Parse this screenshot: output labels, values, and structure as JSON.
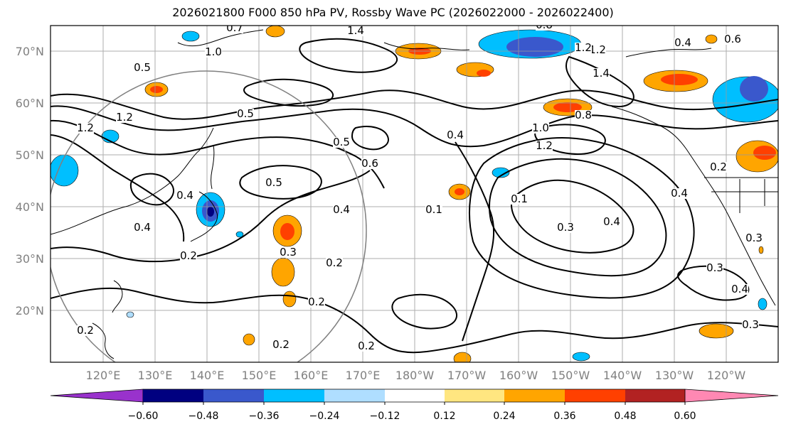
{
  "title": "2026021800 F000 850 hPa PV, Rossby Wave PC (2026022000 - 2026022400)",
  "map": {
    "lat_labels": [
      "70°N",
      "60°N",
      "50°N",
      "40°N",
      "30°N",
      "20°N"
    ],
    "lon_labels": [
      "120°E",
      "130°E",
      "140°E",
      "150°E",
      "160°E",
      "170°E",
      "180°W",
      "170°W",
      "160°W",
      "150°W",
      "140°W",
      "130°W",
      "120°W"
    ],
    "contour_labels": [
      "1.4",
      "0.7",
      "1.0",
      "0.8",
      "1.2",
      "0.5",
      "1.2",
      "1.2",
      "0.5",
      "0.5",
      "0.4",
      "0.6",
      "0.4",
      "0.5",
      "0.4",
      "0.2",
      "0.2",
      "0.2",
      "0.3",
      "0.2",
      "0.2",
      "0.2",
      "0.3",
      "0.3",
      "0.4",
      "0.3",
      "1.0",
      "1.2",
      "0.8",
      "0.1",
      "0.4",
      "0.4",
      "0.2",
      "1.4",
      "1.2",
      "0.6",
      "0.4",
      "0.1",
      "0.3",
      "0.4"
    ]
  },
  "colorbar": {
    "colors": [
      "#9932cc",
      "#000080",
      "#3a58cc",
      "#00bfff",
      "#afdeff",
      "#ffffff",
      "#ffe680",
      "#ffa500",
      "#ff4000",
      "#b22222",
      "#ff88b3"
    ],
    "tick_labels": [
      "−0.60",
      "−0.48",
      "−0.36",
      "−0.24",
      "−0.12",
      "0.12",
      "0.24",
      "0.36",
      "0.48",
      "0.60"
    ]
  }
}
